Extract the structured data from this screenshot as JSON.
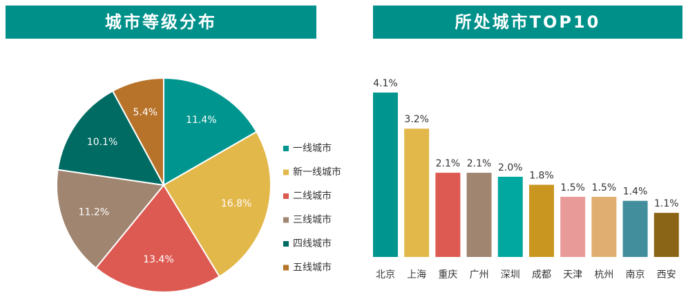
{
  "chart_data": [
    {
      "type": "pie",
      "title": "城市等级分布",
      "categories": [
        "一线城市",
        "新一线城市",
        "二线城市",
        "三线城市",
        "四线城市",
        "五线城市"
      ],
      "values": [
        11.4,
        16.8,
        13.4,
        11.2,
        10.1,
        5.4
      ],
      "value_labels": [
        "11.4%",
        "16.8%",
        "13.4%",
        "11.2%",
        "10.1%",
        "5.4%"
      ],
      "colors": [
        "#00968f",
        "#e3b84b",
        "#dd5a52",
        "#a08570",
        "#006b63",
        "#b8732a"
      ],
      "legend": "right"
    },
    {
      "type": "bar",
      "title": "所处城市TOP10",
      "categories": [
        "北京",
        "上海",
        "重庆",
        "广州",
        "深圳",
        "成都",
        "天津",
        "杭州",
        "南京",
        "西安"
      ],
      "values": [
        4.1,
        3.2,
        2.1,
        2.1,
        2.0,
        1.8,
        1.5,
        1.5,
        1.4,
        1.1
      ],
      "value_labels": [
        "4.1%",
        "3.2%",
        "2.1%",
        "2.1%",
        "2.0%",
        "1.8%",
        "1.5%",
        "1.5%",
        "1.4%",
        "1.1%"
      ],
      "colors": [
        "#00968f",
        "#e3b84b",
        "#dd5a52",
        "#a08570",
        "#00a8a0",
        "#c9961f",
        "#e89a98",
        "#e1ae72",
        "#438e9c",
        "#8b6517"
      ]
    }
  ]
}
